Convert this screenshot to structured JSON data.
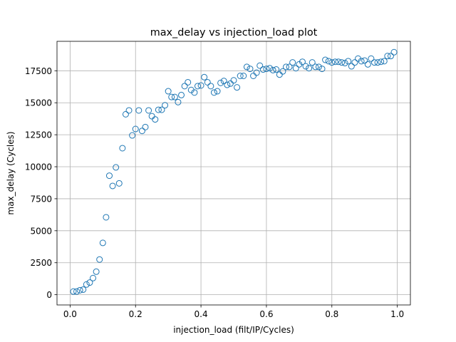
{
  "chart_data": {
    "type": "scatter",
    "title": "max_delay vs injection_load plot",
    "xlabel": "injection_load (filt/IP/Cycles)",
    "ylabel": "max_delay (Cycles)",
    "xlim": [
      -0.04,
      1.04
    ],
    "ylim": [
      -800,
      19800
    ],
    "xticks": [
      0.0,
      0.2,
      0.4,
      0.6,
      0.8,
      1.0
    ],
    "xtick_labels": [
      "0.0",
      "0.2",
      "0.4",
      "0.6",
      "0.8",
      "1.0"
    ],
    "yticks": [
      0,
      2500,
      5000,
      7500,
      10000,
      12500,
      15000,
      17500
    ],
    "ytick_labels": [
      "0",
      "2500",
      "5000",
      "7500",
      "10000",
      "12500",
      "15000",
      "17500"
    ],
    "grid": true,
    "marker": "open-circle",
    "colors": {
      "marker": "#1f77b4",
      "grid": "#b0b0b0"
    },
    "series": [
      {
        "x": [
          0.01,
          0.02,
          0.03,
          0.04,
          0.05,
          0.06,
          0.07,
          0.08,
          0.09,
          0.1,
          0.11,
          0.12,
          0.13,
          0.14,
          0.15,
          0.16,
          0.17,
          0.18,
          0.19,
          0.2,
          0.21,
          0.22,
          0.23,
          0.24,
          0.25,
          0.26,
          0.27,
          0.28,
          0.29,
          0.3,
          0.31,
          0.32,
          0.33,
          0.34,
          0.35,
          0.36,
          0.37,
          0.38,
          0.39,
          0.4,
          0.41,
          0.42,
          0.43,
          0.44,
          0.45,
          0.46,
          0.47,
          0.48,
          0.49,
          0.5,
          0.51,
          0.52,
          0.53,
          0.54,
          0.55,
          0.56,
          0.57,
          0.58,
          0.59,
          0.6,
          0.61,
          0.62,
          0.63,
          0.64,
          0.65,
          0.66,
          0.67,
          0.68,
          0.69,
          0.7,
          0.71,
          0.72,
          0.73,
          0.74,
          0.75,
          0.76,
          0.77,
          0.78,
          0.79,
          0.8,
          0.81,
          0.82,
          0.83,
          0.84,
          0.85,
          0.86,
          0.87,
          0.88,
          0.89,
          0.9,
          0.91,
          0.92,
          0.93,
          0.94,
          0.95,
          0.96,
          0.97,
          0.98,
          0.99
        ],
        "y": [
          250,
          250,
          350,
          400,
          800,
          950,
          1300,
          1800,
          2750,
          4050,
          6050,
          9300,
          8500,
          9950,
          8700,
          11450,
          14100,
          14400,
          12450,
          12950,
          14400,
          12800,
          13100,
          14400,
          13950,
          13700,
          14450,
          14450,
          14800,
          15900,
          15450,
          15450,
          15050,
          15600,
          16300,
          16600,
          16000,
          15800,
          16300,
          16350,
          17000,
          16600,
          16300,
          15800,
          15900,
          16550,
          16700,
          16400,
          16500,
          16750,
          16200,
          17100,
          17100,
          17800,
          17650,
          17100,
          17350,
          17900,
          17600,
          17650,
          17700,
          17550,
          17600,
          17200,
          17450,
          17800,
          17800,
          18150,
          17700,
          18000,
          18200,
          17850,
          17700,
          18150,
          17800,
          17800,
          17650,
          18350,
          18250,
          18150,
          18200,
          18200,
          18150,
          18100,
          18250,
          17850,
          18150,
          18450,
          18250,
          18300,
          18000,
          18450,
          18150,
          18150,
          18200,
          18250,
          18650,
          18650,
          18950
        ]
      }
    ]
  }
}
